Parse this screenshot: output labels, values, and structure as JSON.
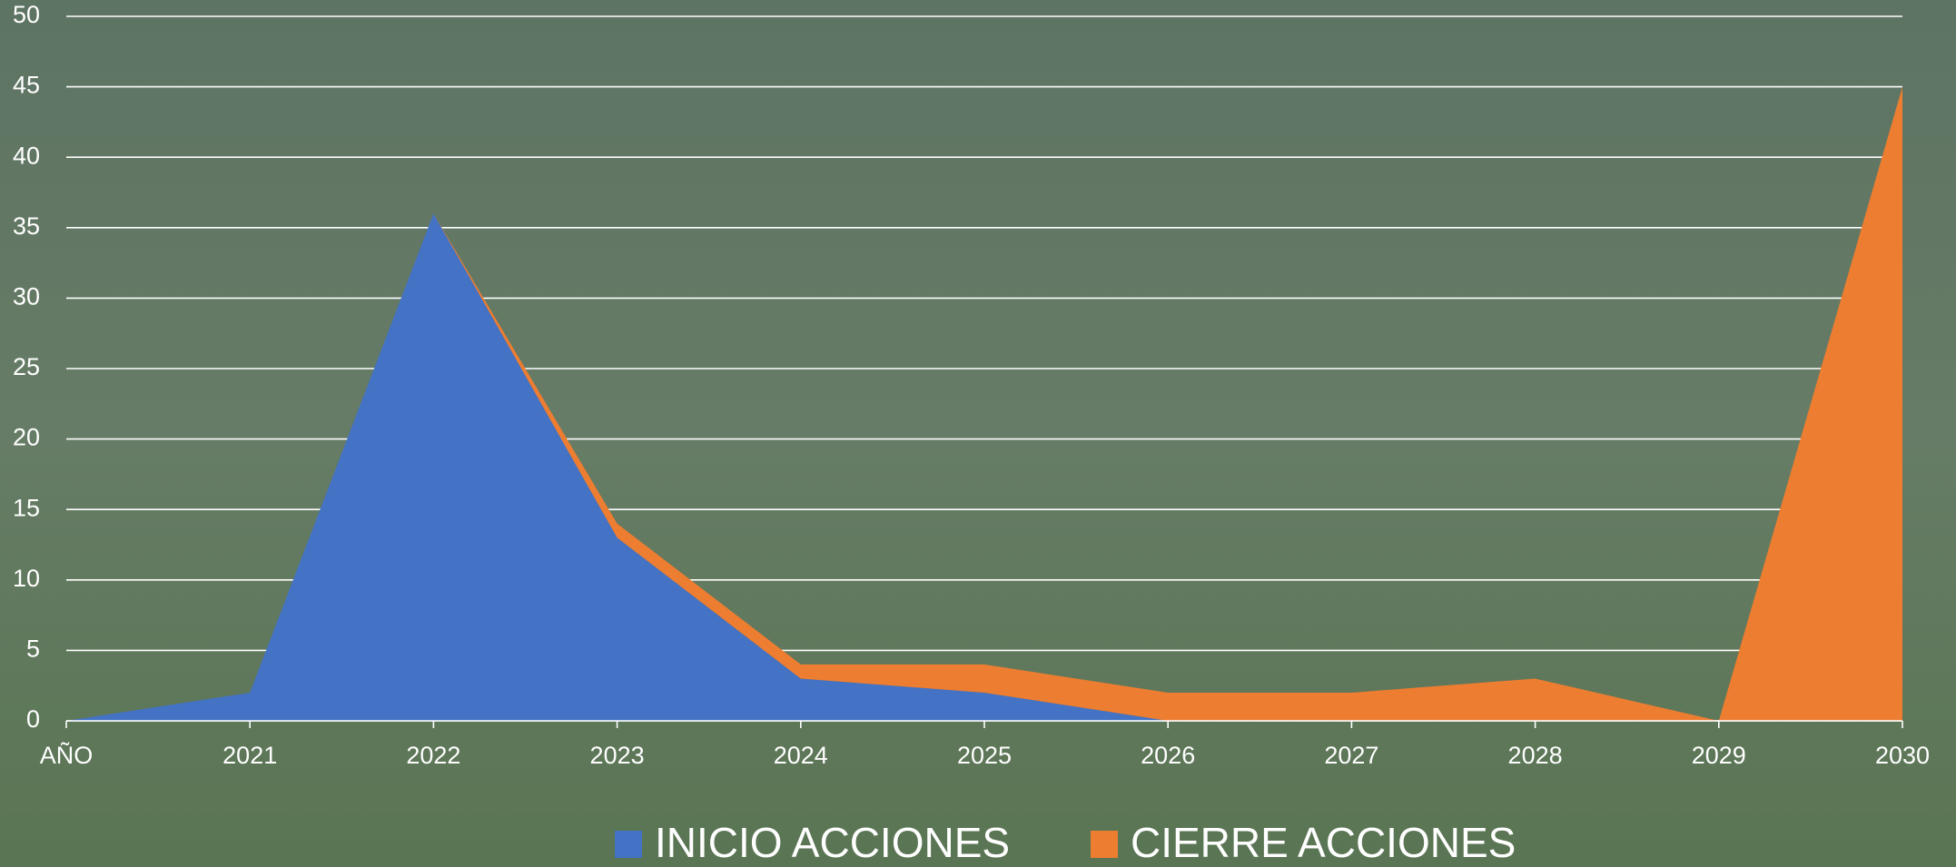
{
  "chart_data": {
    "type": "stacked-area",
    "categories": [
      "AÑO",
      "2021",
      "2022",
      "2023",
      "2024",
      "2025",
      "2026",
      "2027",
      "2028",
      "2029",
      "2030"
    ],
    "series": [
      {
        "name": "INICIO ACCIONES",
        "color": "#4472c4",
        "values": [
          0,
          2,
          36,
          13,
          3,
          2,
          0,
          0,
          0,
          0,
          0
        ]
      },
      {
        "name": "CIERRE ACCIONES",
        "color": "#ed7d31",
        "values": [
          0,
          0,
          0,
          1,
          1,
          2,
          2,
          2,
          3,
          0,
          45
        ]
      }
    ],
    "ylim": [
      0,
      50
    ],
    "yticks": [
      0,
      5,
      10,
      15,
      20,
      25,
      30,
      35,
      40,
      45,
      50
    ],
    "grid": true
  }
}
